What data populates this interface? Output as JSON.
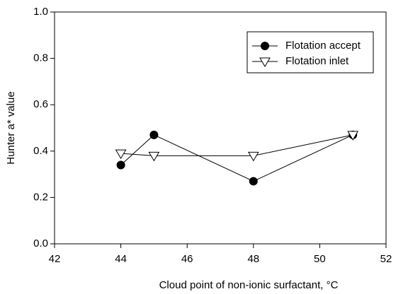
{
  "chart_data": {
    "type": "line",
    "xlabel": "Cloud point of non-ionic surfactant, °C",
    "ylabel": "Hunter a* value",
    "x": [
      44,
      45,
      48,
      51
    ],
    "series": [
      {
        "name": "Flotation accept",
        "color": "#000000",
        "marker": "circle",
        "values": [
          0.34,
          0.47,
          0.27,
          0.47
        ]
      },
      {
        "name": "Flotation inlet",
        "color": "#000000",
        "marker": "triangle-down",
        "values": [
          0.39,
          0.38,
          0.38,
          0.47
        ]
      }
    ],
    "xlim": [
      42,
      52
    ],
    "xticks": [
      42,
      44,
      46,
      48,
      50,
      52
    ],
    "ylim": [
      0,
      1
    ],
    "yticks": [
      {
        "value": 0,
        "label": "0.0"
      },
      0.2,
      0.4,
      0.6,
      0.8,
      {
        "value": 1,
        "label": "1.0"
      }
    ],
    "grid": false,
    "legend": "upper right"
  }
}
